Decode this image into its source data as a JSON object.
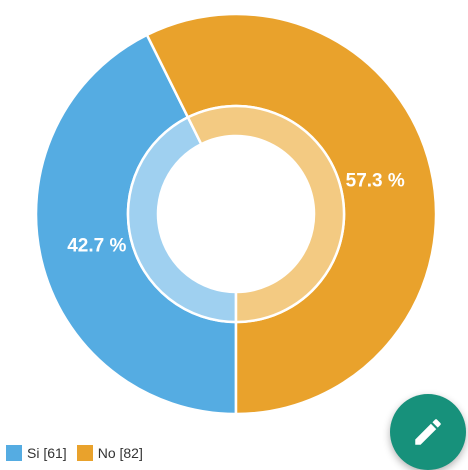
{
  "chart_data": {
    "type": "pie",
    "title": "",
    "series": [
      {
        "name": "Si",
        "value": 61,
        "percent_label": "42.7 %",
        "legend_label": "Si [61]",
        "color": "#55ace2",
        "inner_color": "#9fd0f0"
      },
      {
        "name": "No",
        "value": 82,
        "percent_label": "57.3 %",
        "legend_label": "No [82]",
        "color": "#e9a22c",
        "inner_color": "#f3ca82"
      }
    ],
    "legend_position": "bottom-left"
  },
  "fab": {
    "icon": "pencil-icon",
    "color": "#17917b"
  }
}
